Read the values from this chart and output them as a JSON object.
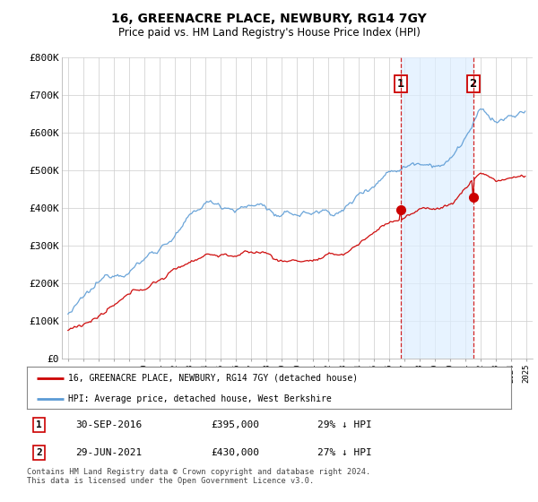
{
  "title": "16, GREENACRE PLACE, NEWBURY, RG14 7GY",
  "subtitle": "Price paid vs. HM Land Registry's House Price Index (HPI)",
  "ylim": [
    0,
    800000
  ],
  "yticks": [
    0,
    100000,
    200000,
    300000,
    400000,
    500000,
    600000,
    700000,
    800000
  ],
  "ytick_labels": [
    "£0",
    "£100K",
    "£200K",
    "£300K",
    "£400K",
    "£500K",
    "£600K",
    "£700K",
    "£800K"
  ],
  "hpi_color": "#5b9bd5",
  "price_color": "#cc0000",
  "dashed_color": "#cc0000",
  "shade_color": "#ddeeff",
  "marker1_date": 2016.75,
  "marker2_date": 2021.5,
  "marker1_price": 395000,
  "marker2_price": 430000,
  "legend_line1": "16, GREENACRE PLACE, NEWBURY, RG14 7GY (detached house)",
  "legend_line2": "HPI: Average price, detached house, West Berkshire",
  "table_row1": [
    "1",
    "30-SEP-2016",
    "£395,000",
    "29% ↓ HPI"
  ],
  "table_row2": [
    "2",
    "29-JUN-2021",
    "£430,000",
    "27% ↓ HPI"
  ],
  "footnote": "Contains HM Land Registry data © Crown copyright and database right 2024.\nThis data is licensed under the Open Government Licence v3.0.",
  "background_color": "#ffffff",
  "grid_color": "#cccccc"
}
